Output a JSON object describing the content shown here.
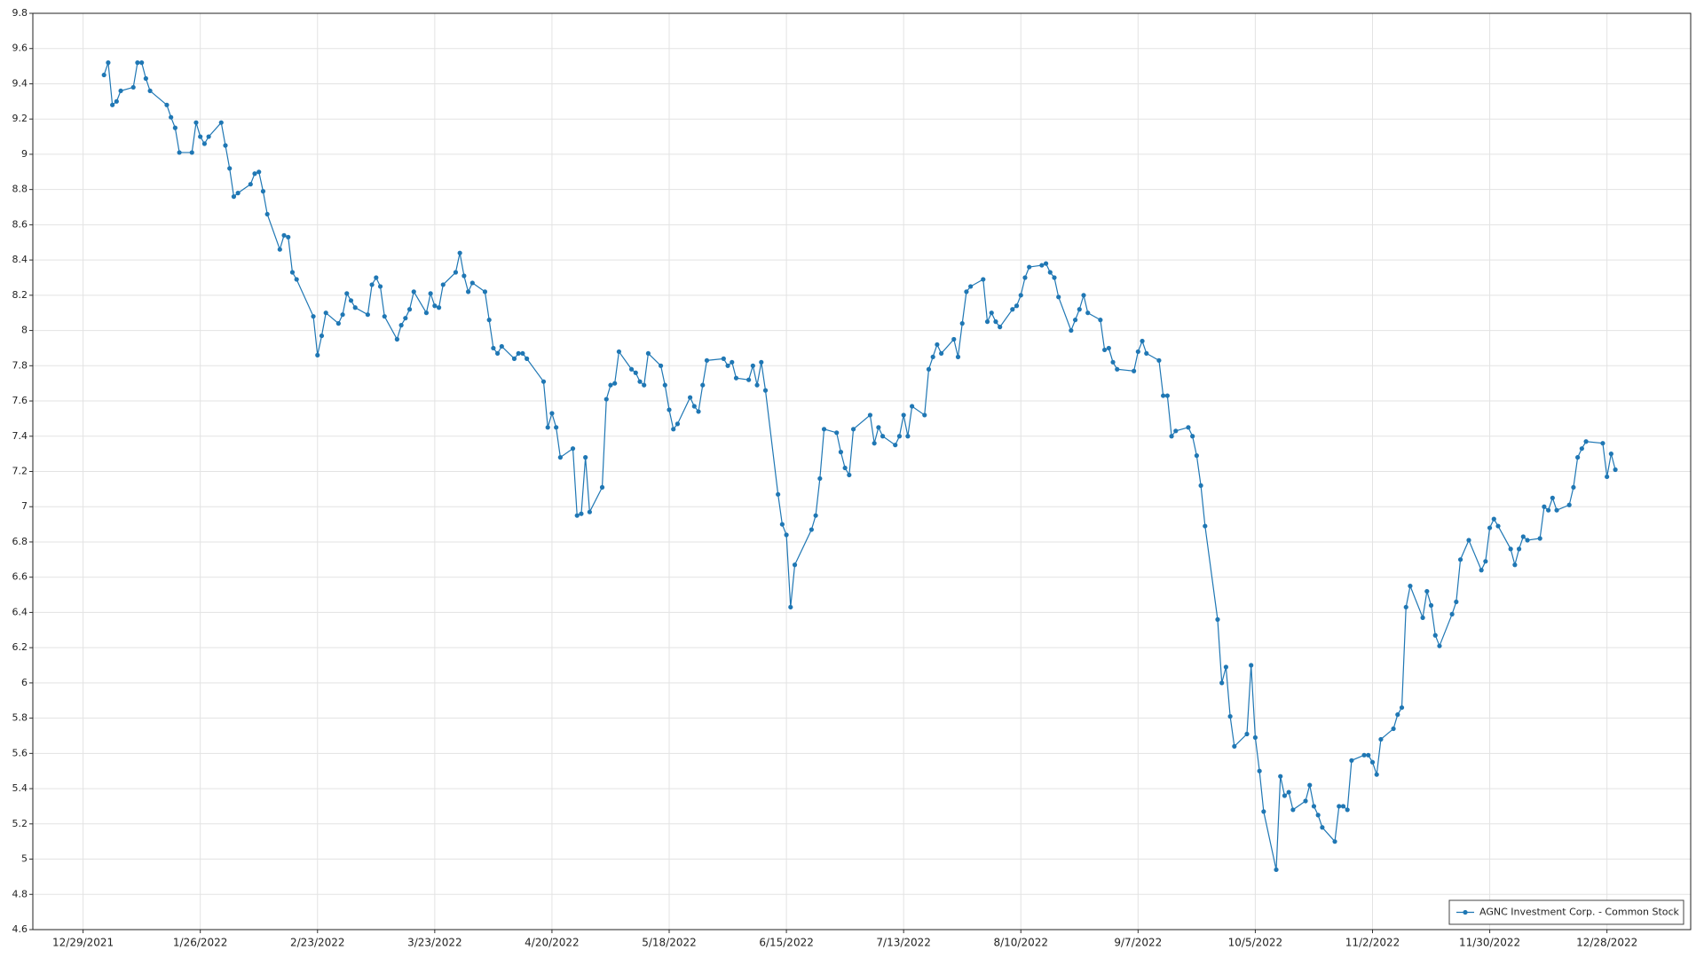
{
  "chart_data": {
    "type": "line",
    "x": [
      "2022-01-03",
      "2022-01-04",
      "2022-01-05",
      "2022-01-06",
      "2022-01-07",
      "2022-01-10",
      "2022-01-11",
      "2022-01-12",
      "2022-01-13",
      "2022-01-14",
      "2022-01-18",
      "2022-01-19",
      "2022-01-20",
      "2022-01-21",
      "2022-01-24",
      "2022-01-25",
      "2022-01-26",
      "2022-01-27",
      "2022-01-28",
      "2022-01-31",
      "2022-02-01",
      "2022-02-02",
      "2022-02-03",
      "2022-02-04",
      "2022-02-07",
      "2022-02-08",
      "2022-02-09",
      "2022-02-10",
      "2022-02-11",
      "2022-02-14",
      "2022-02-15",
      "2022-02-16",
      "2022-02-17",
      "2022-02-18",
      "2022-02-22",
      "2022-02-23",
      "2022-02-24",
      "2022-02-25",
      "2022-02-28",
      "2022-03-01",
      "2022-03-02",
      "2022-03-03",
      "2022-03-04",
      "2022-03-07",
      "2022-03-08",
      "2022-03-09",
      "2022-03-10",
      "2022-03-11",
      "2022-03-14",
      "2022-03-15",
      "2022-03-16",
      "2022-03-17",
      "2022-03-18",
      "2022-03-21",
      "2022-03-22",
      "2022-03-23",
      "2022-03-24",
      "2022-03-25",
      "2022-03-28",
      "2022-03-29",
      "2022-03-30",
      "2022-03-31",
      "2022-04-01",
      "2022-04-04",
      "2022-04-05",
      "2022-04-06",
      "2022-04-07",
      "2022-04-08",
      "2022-04-11",
      "2022-04-12",
      "2022-04-13",
      "2022-04-14",
      "2022-04-18",
      "2022-04-19",
      "2022-04-20",
      "2022-04-21",
      "2022-04-22",
      "2022-04-25",
      "2022-04-26",
      "2022-04-27",
      "2022-04-28",
      "2022-04-29",
      "2022-05-02",
      "2022-05-03",
      "2022-05-04",
      "2022-05-05",
      "2022-05-06",
      "2022-05-09",
      "2022-05-10",
      "2022-05-11",
      "2022-05-12",
      "2022-05-13",
      "2022-05-16",
      "2022-05-17",
      "2022-05-18",
      "2022-05-19",
      "2022-05-20",
      "2022-05-23",
      "2022-05-24",
      "2022-05-25",
      "2022-05-26",
      "2022-05-27",
      "2022-05-31",
      "2022-06-01",
      "2022-06-02",
      "2022-06-03",
      "2022-06-06",
      "2022-06-07",
      "2022-06-08",
      "2022-06-09",
      "2022-06-10",
      "2022-06-13",
      "2022-06-14",
      "2022-06-15",
      "2022-06-16",
      "2022-06-17",
      "2022-06-21",
      "2022-06-22",
      "2022-06-23",
      "2022-06-24",
      "2022-06-27",
      "2022-06-28",
      "2022-06-29",
      "2022-06-30",
      "2022-07-01",
      "2022-07-05",
      "2022-07-06",
      "2022-07-07",
      "2022-07-08",
      "2022-07-11",
      "2022-07-12",
      "2022-07-13",
      "2022-07-14",
      "2022-07-15",
      "2022-07-18",
      "2022-07-19",
      "2022-07-20",
      "2022-07-21",
      "2022-07-22",
      "2022-07-25",
      "2022-07-26",
      "2022-07-27",
      "2022-07-28",
      "2022-07-29",
      "2022-08-01",
      "2022-08-02",
      "2022-08-03",
      "2022-08-04",
      "2022-08-05",
      "2022-08-08",
      "2022-08-09",
      "2022-08-10",
      "2022-08-11",
      "2022-08-12",
      "2022-08-15",
      "2022-08-16",
      "2022-08-17",
      "2022-08-18",
      "2022-08-19",
      "2022-08-22",
      "2022-08-23",
      "2022-08-24",
      "2022-08-25",
      "2022-08-26",
      "2022-08-29",
      "2022-08-30",
      "2022-08-31",
      "2022-09-01",
      "2022-09-02",
      "2022-09-06",
      "2022-09-07",
      "2022-09-08",
      "2022-09-09",
      "2022-09-12",
      "2022-09-13",
      "2022-09-14",
      "2022-09-15",
      "2022-09-16",
      "2022-09-19",
      "2022-09-20",
      "2022-09-21",
      "2022-09-22",
      "2022-09-23",
      "2022-09-26",
      "2022-09-27",
      "2022-09-28",
      "2022-09-29",
      "2022-09-30",
      "2022-10-03",
      "2022-10-04",
      "2022-10-05",
      "2022-10-06",
      "2022-10-07",
      "2022-10-10",
      "2022-10-11",
      "2022-10-12",
      "2022-10-13",
      "2022-10-14",
      "2022-10-17",
      "2022-10-18",
      "2022-10-19",
      "2022-10-20",
      "2022-10-21",
      "2022-10-24",
      "2022-10-25",
      "2022-10-26",
      "2022-10-27",
      "2022-10-28",
      "2022-10-31",
      "2022-11-01",
      "2022-11-02",
      "2022-11-03",
      "2022-11-04",
      "2022-11-07",
      "2022-11-08",
      "2022-11-09",
      "2022-11-10",
      "2022-11-11",
      "2022-11-14",
      "2022-11-15",
      "2022-11-16",
      "2022-11-17",
      "2022-11-18",
      "2022-11-21",
      "2022-11-22",
      "2022-11-23",
      "2022-11-25",
      "2022-11-28",
      "2022-11-29",
      "2022-11-30",
      "2022-12-01",
      "2022-12-02",
      "2022-12-05",
      "2022-12-06",
      "2022-12-07",
      "2022-12-08",
      "2022-12-09",
      "2022-12-12",
      "2022-12-13",
      "2022-12-14",
      "2022-12-15",
      "2022-12-16",
      "2022-12-19",
      "2022-12-20",
      "2022-12-21",
      "2022-12-22",
      "2022-12-23",
      "2022-12-27",
      "2022-12-28",
      "2022-12-29",
      "2022-12-30"
    ],
    "series": [
      {
        "name": "AGNC Investment Corp. - Common Stock",
        "color": "#1f77b4",
        "values": [
          9.45,
          9.52,
          9.28,
          9.3,
          9.36,
          9.38,
          9.52,
          9.52,
          9.43,
          9.36,
          9.28,
          9.21,
          9.15,
          9.01,
          9.01,
          9.18,
          9.1,
          9.06,
          9.1,
          9.18,
          9.05,
          8.92,
          8.76,
          8.78,
          8.83,
          8.89,
          8.9,
          8.79,
          8.66,
          8.46,
          8.54,
          8.53,
          8.33,
          8.29,
          8.08,
          7.86,
          7.97,
          8.1,
          8.04,
          8.09,
          8.21,
          8.17,
          8.13,
          8.09,
          8.26,
          8.3,
          8.25,
          8.08,
          7.95,
          8.03,
          8.07,
          8.12,
          8.22,
          8.1,
          8.21,
          8.14,
          8.13,
          8.26,
          8.33,
          8.44,
          8.31,
          8.22,
          8.27,
          8.22,
          8.06,
          7.9,
          7.87,
          7.91,
          7.84,
          7.87,
          7.87,
          7.84,
          7.71,
          7.45,
          7.53,
          7.45,
          7.28,
          7.33,
          6.95,
          6.96,
          7.28,
          6.97,
          7.11,
          7.61,
          7.69,
          7.7,
          7.88,
          7.78,
          7.76,
          7.71,
          7.69,
          7.87,
          7.8,
          7.69,
          7.55,
          7.44,
          7.47,
          7.62,
          7.57,
          7.54,
          7.69,
          7.83,
          7.84,
          7.8,
          7.82,
          7.73,
          7.72,
          7.8,
          7.69,
          7.82,
          7.66,
          7.07,
          6.9,
          6.84,
          6.43,
          6.67,
          6.87,
          6.95,
          7.16,
          7.44,
          7.42,
          7.31,
          7.22,
          7.18,
          7.44,
          7.52,
          7.36,
          7.45,
          7.4,
          7.35,
          7.4,
          7.52,
          7.4,
          7.57,
          7.52,
          7.78,
          7.85,
          7.92,
          7.87,
          7.95,
          7.85,
          8.04,
          8.22,
          8.25,
          8.29,
          8.05,
          8.1,
          8.05,
          8.02,
          8.12,
          8.14,
          8.2,
          8.3,
          8.36,
          8.37,
          8.38,
          8.33,
          8.3,
          8.19,
          8.0,
          8.06,
          8.12,
          8.2,
          8.1,
          8.06,
          7.89,
          7.9,
          7.82,
          7.78,
          7.77,
          7.88,
          7.94,
          7.87,
          7.83,
          7.63,
          7.63,
          7.4,
          7.43,
          7.45,
          7.4,
          7.29,
          7.12,
          6.89,
          6.36,
          6.0,
          6.09,
          5.81,
          5.64,
          5.71,
          6.1,
          5.69,
          5.5,
          5.27,
          4.94,
          5.47,
          5.36,
          5.38,
          5.28,
          5.33,
          5.42,
          5.3,
          5.25,
          5.18,
          5.1,
          5.3,
          5.3,
          5.28,
          5.56,
          5.59,
          5.59,
          5.55,
          5.48,
          5.68,
          5.74,
          5.82,
          5.86,
          6.43,
          6.55,
          6.37,
          6.52,
          6.44,
          6.27,
          6.21,
          6.39,
          6.46,
          6.7,
          6.81,
          6.64,
          6.69,
          6.88,
          6.93,
          6.89,
          6.76,
          6.67,
          6.76,
          6.83,
          6.81,
          6.82,
          7.0,
          6.98,
          7.05,
          6.98,
          7.01,
          7.11,
          7.28,
          7.33,
          7.37,
          7.36,
          7.17,
          7.3,
          7.21
        ]
      }
    ],
    "xlim": [
      "2021-12-17",
      "2023-01-17"
    ],
    "xticks": [
      {
        "value": "2021-12-29",
        "label": "12/29/2021"
      },
      {
        "value": "2022-01-26",
        "label": "1/26/2022"
      },
      {
        "value": "2022-02-23",
        "label": "2/23/2022"
      },
      {
        "value": "2022-03-23",
        "label": "3/23/2022"
      },
      {
        "value": "2022-04-20",
        "label": "4/20/2022"
      },
      {
        "value": "2022-05-18",
        "label": "5/18/2022"
      },
      {
        "value": "2022-06-15",
        "label": "6/15/2022"
      },
      {
        "value": "2022-07-13",
        "label": "7/13/2022"
      },
      {
        "value": "2022-08-10",
        "label": "8/10/2022"
      },
      {
        "value": "2022-09-07",
        "label": "9/7/2022"
      },
      {
        "value": "2022-10-05",
        "label": "10/5/2022"
      },
      {
        "value": "2022-11-02",
        "label": "11/2/2022"
      },
      {
        "value": "2022-11-30",
        "label": "11/30/2022"
      },
      {
        "value": "2022-12-28",
        "label": "12/28/2022"
      }
    ],
    "ylim": [
      4.6,
      9.8
    ],
    "yticks": [
      4.6,
      4.8,
      5,
      5.2,
      5.4,
      5.6,
      5.8,
      6,
      6.2,
      6.4,
      6.6,
      6.8,
      7,
      7.2,
      7.4,
      7.6,
      7.8,
      8,
      8.2,
      8.4,
      8.6,
      8.8,
      9,
      9.2,
      9.4,
      9.6,
      9.8
    ],
    "grid": true,
    "legend": "lower right"
  }
}
